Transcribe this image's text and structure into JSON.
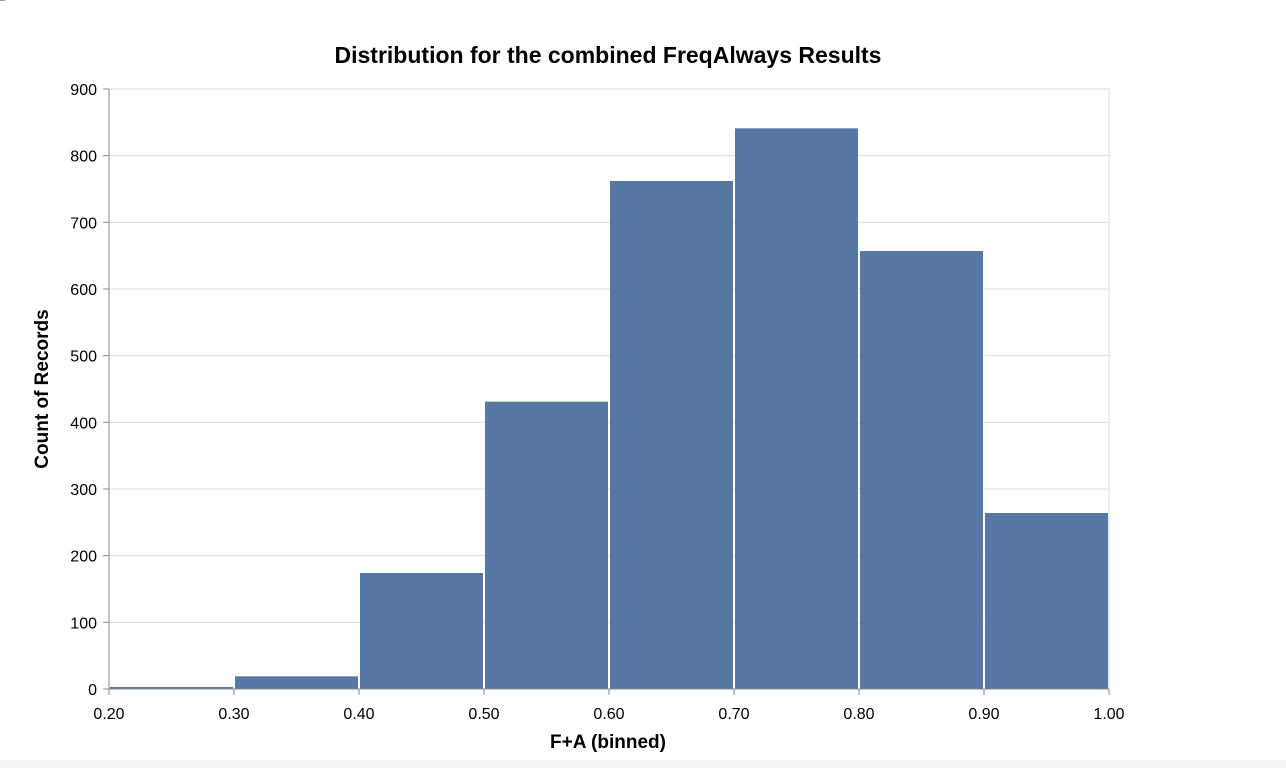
{
  "chart_data": {
    "type": "bar",
    "title": "Distribution for the combined FreqAlways Results",
    "xlabel": "F+A (binned)",
    "ylabel": "Count of Records",
    "bins": [
      {
        "start": 0.2,
        "end": 0.3,
        "value": 3
      },
      {
        "start": 0.3,
        "end": 0.4,
        "value": 19
      },
      {
        "start": 0.4,
        "end": 0.5,
        "value": 174
      },
      {
        "start": 0.5,
        "end": 0.6,
        "value": 431
      },
      {
        "start": 0.6,
        "end": 0.7,
        "value": 762
      },
      {
        "start": 0.7,
        "end": 0.8,
        "value": 841
      },
      {
        "start": 0.8,
        "end": 0.9,
        "value": 657
      },
      {
        "start": 0.9,
        "end": 1.0,
        "value": 264
      }
    ],
    "xlim": [
      0.2,
      1.0
    ],
    "ylim": [
      0,
      900
    ],
    "x_ticks": [
      "0.20",
      "0.30",
      "0.40",
      "0.50",
      "0.60",
      "0.70",
      "0.80",
      "0.90",
      "1.00"
    ],
    "y_ticks": [
      "0",
      "100",
      "200",
      "300",
      "400",
      "500",
      "600",
      "700",
      "800",
      "900"
    ],
    "grid": true,
    "bar_color": "#5778a4",
    "grid_color": "#dddddd",
    "axis_color": "#888888"
  }
}
